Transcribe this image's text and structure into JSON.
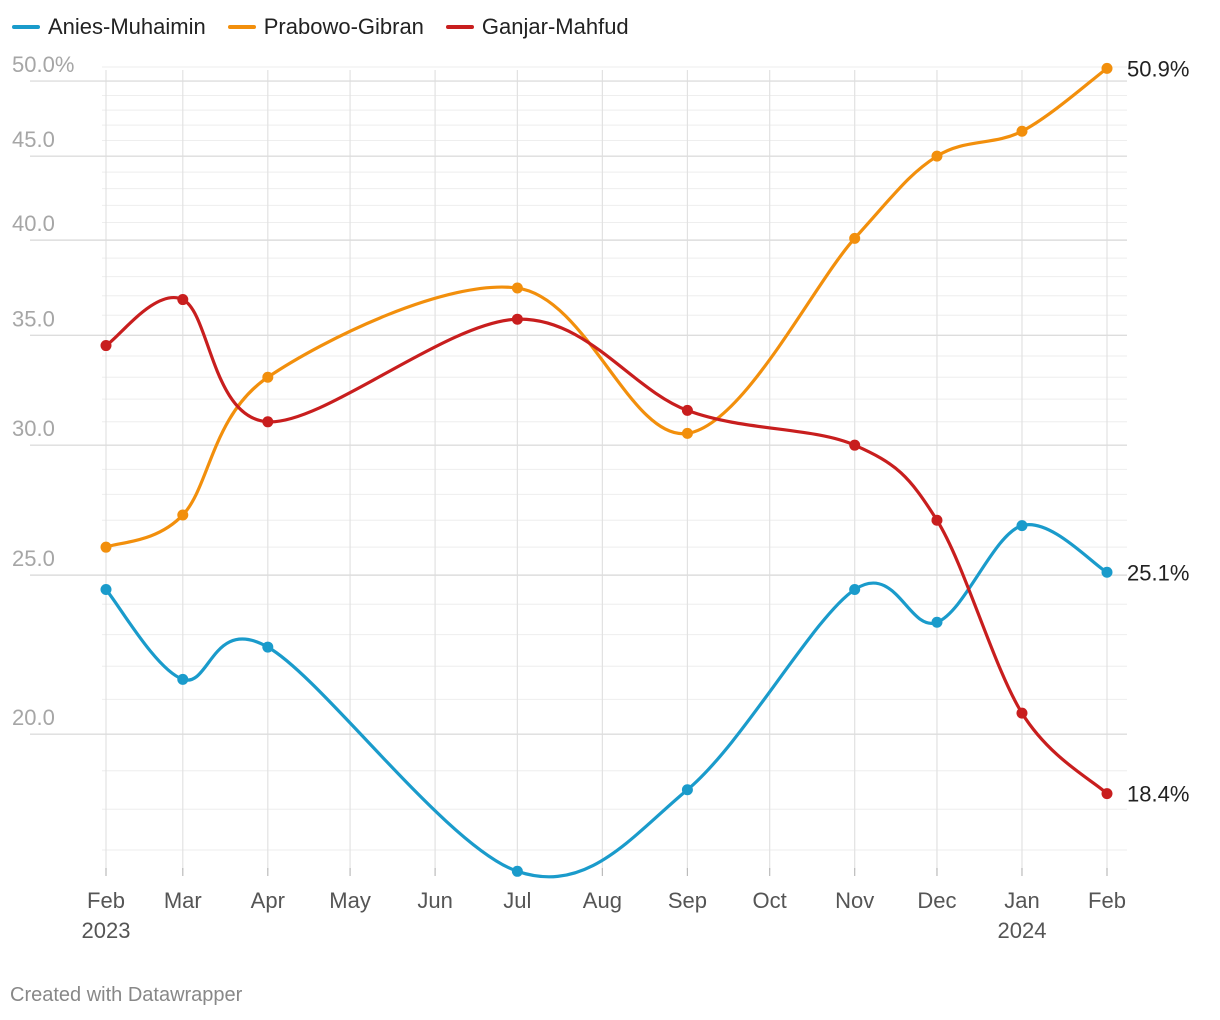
{
  "footer": "Created with Datawrapper",
  "chart_data": {
    "type": "line",
    "title": "",
    "xlabel": "",
    "ylabel": "",
    "x_ticks": [
      {
        "label": "Feb",
        "sub": "2023"
      },
      {
        "label": "Mar",
        "sub": ""
      },
      {
        "label": "Apr",
        "sub": ""
      },
      {
        "label": "May",
        "sub": ""
      },
      {
        "label": "Jun",
        "sub": ""
      },
      {
        "label": "Jul",
        "sub": ""
      },
      {
        "label": "Aug",
        "sub": ""
      },
      {
        "label": "Sep",
        "sub": ""
      },
      {
        "label": "Oct",
        "sub": ""
      },
      {
        "label": "Nov",
        "sub": ""
      },
      {
        "label": "Dec",
        "sub": ""
      },
      {
        "label": "Jan",
        "sub": "2024"
      },
      {
        "label": "Feb",
        "sub": ""
      }
    ],
    "y_ticks": [
      {
        "value": 20,
        "label": "20.0"
      },
      {
        "value": 25,
        "label": "25.0"
      },
      {
        "value": 30,
        "label": "30.0"
      },
      {
        "value": 35,
        "label": "35.0"
      },
      {
        "value": 40,
        "label": "40.0"
      },
      {
        "value": 45,
        "label": "45.0"
      },
      {
        "value": 50,
        "label": "50.0%"
      }
    ],
    "y_scale": "log",
    "ylim": [
      16.3,
      51.5
    ],
    "grid": true,
    "legend_position": "top-left",
    "series": [
      {
        "name": "Anies-Muhaimin",
        "color": "#1a9bcb",
        "end_label": "25.1%",
        "points": [
          {
            "x": "2023-02-01",
            "y": 24.5
          },
          {
            "x": "2023-03-01",
            "y": 21.6
          },
          {
            "x": "2023-04-01",
            "y": 22.6
          },
          {
            "x": "2023-07-01",
            "y": 16.5
          },
          {
            "x": "2023-09-01",
            "y": 18.5
          },
          {
            "x": "2023-11-01",
            "y": 24.5
          },
          {
            "x": "2023-12-01",
            "y": 23.4
          },
          {
            "x": "2024-01-01",
            "y": 26.8
          },
          {
            "x": "2024-02-01",
            "y": 25.1
          }
        ]
      },
      {
        "name": "Prabowo-Gibran",
        "color": "#f28f0c",
        "end_label": "50.9%",
        "points": [
          {
            "x": "2023-02-01",
            "y": 26.0
          },
          {
            "x": "2023-03-01",
            "y": 27.2
          },
          {
            "x": "2023-04-01",
            "y": 33.0
          },
          {
            "x": "2023-07-01",
            "y": 37.4
          },
          {
            "x": "2023-09-01",
            "y": 30.5
          },
          {
            "x": "2023-11-01",
            "y": 40.1
          },
          {
            "x": "2023-12-01",
            "y": 45.0
          },
          {
            "x": "2024-01-01",
            "y": 46.6
          },
          {
            "x": "2024-02-01",
            "y": 50.9
          }
        ]
      },
      {
        "name": "Ganjar-Mahfud",
        "color": "#c81e1e",
        "end_label": "18.4%",
        "points": [
          {
            "x": "2023-02-01",
            "y": 34.5
          },
          {
            "x": "2023-03-01",
            "y": 36.8
          },
          {
            "x": "2023-04-01",
            "y": 31.0
          },
          {
            "x": "2023-07-01",
            "y": 35.8
          },
          {
            "x": "2023-09-01",
            "y": 31.5
          },
          {
            "x": "2023-11-01",
            "y": 30.0
          },
          {
            "x": "2023-12-01",
            "y": 27.0
          },
          {
            "x": "2024-01-01",
            "y": 20.6
          },
          {
            "x": "2024-02-01",
            "y": 18.4
          }
        ]
      }
    ]
  }
}
